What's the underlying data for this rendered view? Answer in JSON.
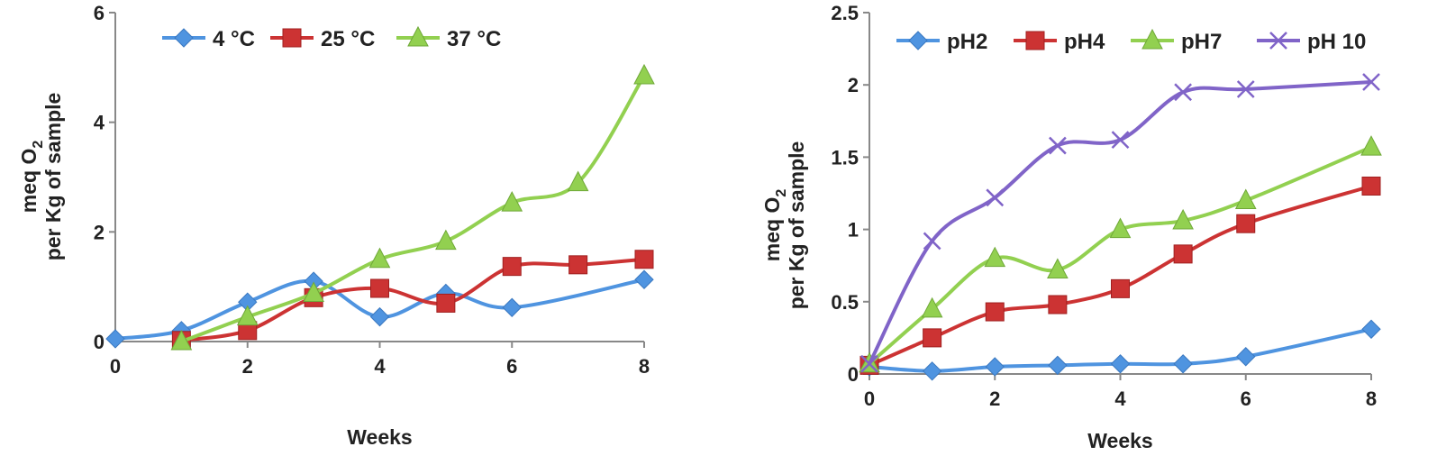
{
  "chart_data": [
    {
      "type": "line",
      "title": "",
      "xlabel": "Weeks",
      "ylabel_line1": "meq O",
      "ylabel_sub": "2",
      "ylabel_line2": "per Kg of sample",
      "xlim": [
        0,
        8
      ],
      "ylim": [
        0,
        6
      ],
      "xticks": [
        0,
        2,
        4,
        6,
        8
      ],
      "yticks": [
        0,
        2,
        4,
        6
      ],
      "grid": false,
      "legend_position": "top",
      "series": [
        {
          "name": "4 °C",
          "color": "#4f94e0",
          "marker": "diamond",
          "points": [
            [
              0,
              0.05
            ],
            [
              1,
              0.2
            ],
            [
              2,
              0.72
            ],
            [
              3,
              1.1
            ],
            [
              4,
              0.45
            ],
            [
              5,
              0.88
            ],
            [
              6,
              0.62
            ],
            [
              8,
              1.13
            ]
          ]
        },
        {
          "name": "25 °C",
          "color": "#cc3333",
          "marker": "square",
          "points": [
            [
              1,
              0.02
            ],
            [
              2,
              0.2
            ],
            [
              3,
              0.8
            ],
            [
              4,
              0.97
            ],
            [
              5,
              0.7
            ],
            [
              6,
              1.37
            ],
            [
              7,
              1.4
            ],
            [
              8,
              1.5
            ]
          ]
        },
        {
          "name": "37 °C",
          "color": "#92d050",
          "marker": "triangle",
          "points": [
            [
              1,
              0.0
            ],
            [
              2,
              0.45
            ],
            [
              3,
              0.88
            ],
            [
              4,
              1.5
            ],
            [
              5,
              1.83
            ],
            [
              6,
              2.53
            ],
            [
              7,
              2.9
            ],
            [
              8,
              4.85
            ]
          ]
        }
      ]
    },
    {
      "type": "line",
      "title": "",
      "xlabel": "Weeks",
      "ylabel_line1": "meq O",
      "ylabel_sub": "2",
      "ylabel_line2": "per Kg of sample",
      "xlim": [
        0,
        8
      ],
      "ylim": [
        0,
        2.5
      ],
      "xticks": [
        0,
        2,
        4,
        6,
        8
      ],
      "yticks": [
        0,
        0.5,
        1,
        1.5,
        2,
        2.5
      ],
      "grid": false,
      "legend_position": "top",
      "series": [
        {
          "name": "pH2",
          "color": "#4f94e0",
          "marker": "diamond",
          "points": [
            [
              0,
              0.05
            ],
            [
              1,
              0.02
            ],
            [
              2,
              0.05
            ],
            [
              3,
              0.06
            ],
            [
              4,
              0.07
            ],
            [
              5,
              0.07
            ],
            [
              6,
              0.12
            ],
            [
              8,
              0.31
            ]
          ]
        },
        {
          "name": "pH4",
          "color": "#cc3333",
          "marker": "square",
          "points": [
            [
              0,
              0.06
            ],
            [
              1,
              0.25
            ],
            [
              2,
              0.43
            ],
            [
              3,
              0.48
            ],
            [
              4,
              0.59
            ],
            [
              5,
              0.83
            ],
            [
              6,
              1.04
            ],
            [
              8,
              1.3
            ]
          ]
        },
        {
          "name": "pH7",
          "color": "#92d050",
          "marker": "triangle",
          "points": [
            [
              0,
              0.07
            ],
            [
              1,
              0.45
            ],
            [
              2,
              0.8
            ],
            [
              3,
              0.72
            ],
            [
              4,
              1.0
            ],
            [
              5,
              1.06
            ],
            [
              6,
              1.2
            ],
            [
              8,
              1.57
            ]
          ]
        },
        {
          "name": "pH 10",
          "color": "#8064c8",
          "marker": "x",
          "points": [
            [
              0,
              0.07
            ],
            [
              1,
              0.92
            ],
            [
              2,
              1.22
            ],
            [
              3,
              1.58
            ],
            [
              4,
              1.62
            ],
            [
              5,
              1.95
            ],
            [
              6,
              1.97
            ],
            [
              8,
              2.02
            ]
          ]
        }
      ]
    }
  ]
}
